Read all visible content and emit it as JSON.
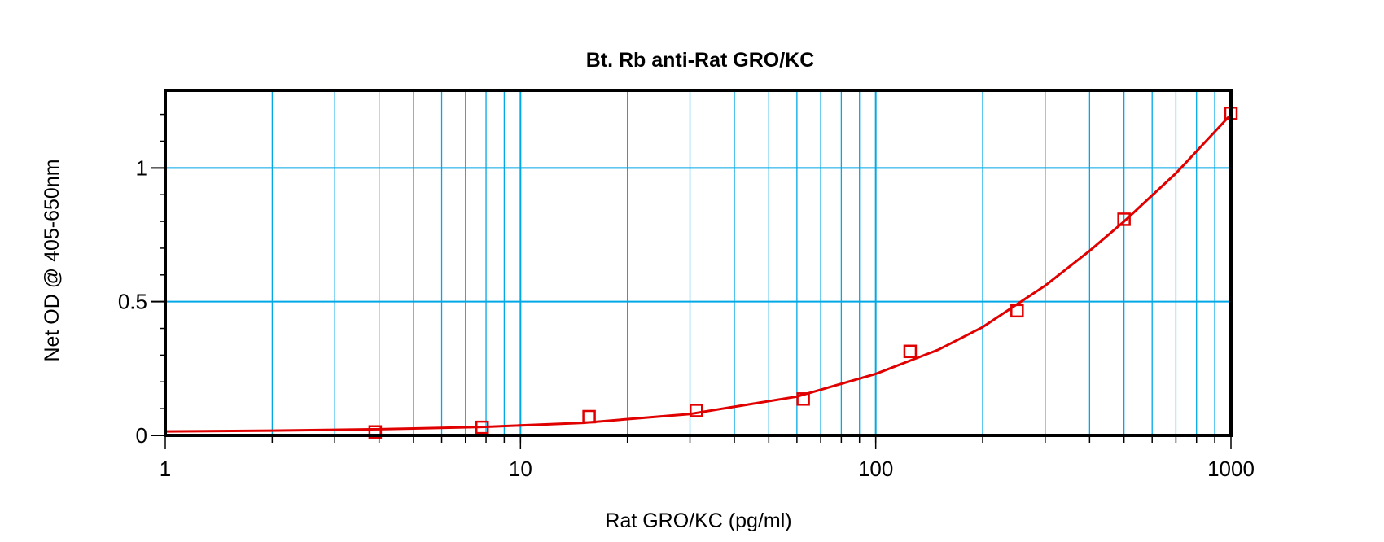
{
  "chart_data": {
    "type": "scatter",
    "title": "Bt. Rb anti-Rat GRO/KC",
    "xlabel": "Rat GRO/KC (pg/ml)",
    "ylabel": "Net OD @ 405-650nm",
    "xscale": "log",
    "xlim": [
      1,
      1000
    ],
    "ylim": [
      0,
      1.29
    ],
    "x_ticks": [
      1,
      10,
      100,
      1000
    ],
    "x_tick_labels": [
      "1",
      "10",
      "100",
      "1000"
    ],
    "y_ticks": [
      0,
      0.5,
      1
    ],
    "y_tick_labels": [
      "0",
      "0.5",
      "1"
    ],
    "y_minor_step": 0.1,
    "grid": true,
    "colors": {
      "grid": "#00a8e6",
      "series": "#e00000",
      "axis": "#000000"
    },
    "series": [
      {
        "marker": "open-square",
        "x": [
          3.9,
          7.8,
          15.6,
          31.25,
          62.5,
          125,
          250,
          500,
          1000
        ],
        "y": [
          0.013,
          0.03,
          0.07,
          0.093,
          0.136,
          0.314,
          0.466,
          0.808,
          1.204
        ]
      }
    ],
    "fit_curve": {
      "x": [
        1,
        2,
        4,
        8,
        15,
        30,
        60,
        100,
        150,
        200,
        300,
        400,
        500,
        700,
        1000
      ],
      "y": [
        0.015,
        0.018,
        0.023,
        0.032,
        0.047,
        0.08,
        0.145,
        0.23,
        0.32,
        0.405,
        0.56,
        0.69,
        0.8,
        0.98,
        1.2
      ]
    }
  }
}
